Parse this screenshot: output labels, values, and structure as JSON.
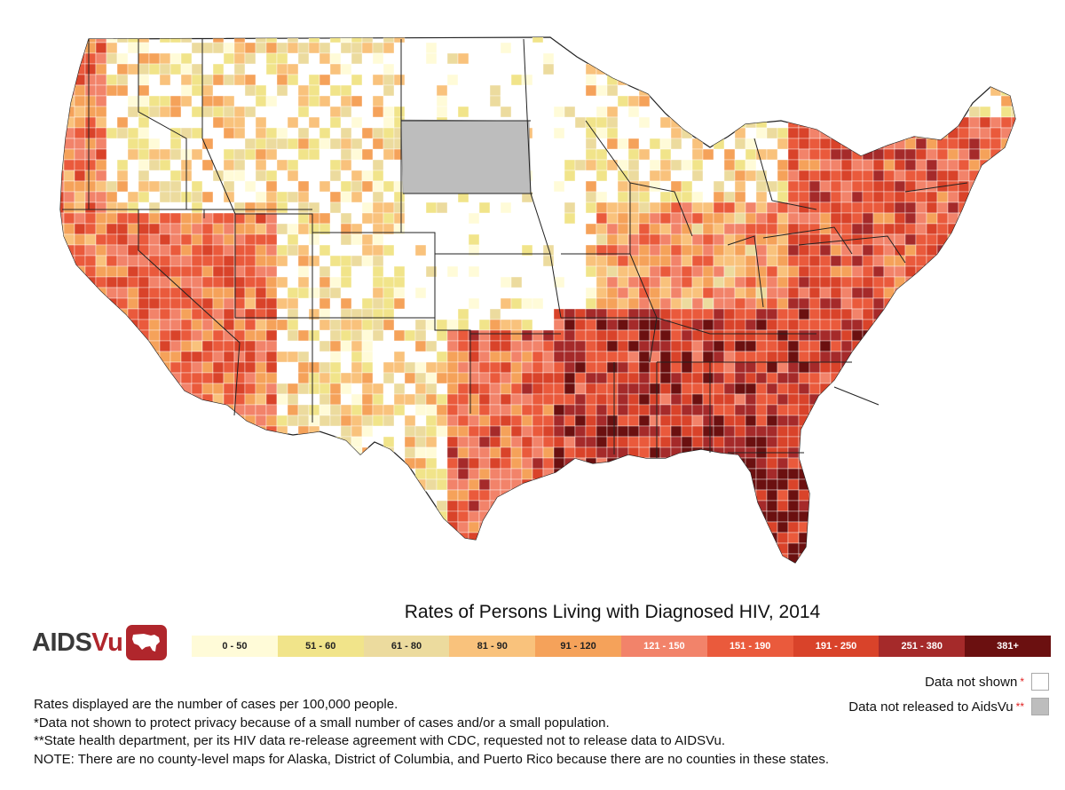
{
  "map": {
    "title": "Rates of Persons Living with Diagnosed HIV, 2014",
    "subject": "County-level rates of persons living with diagnosed HIV, contiguous United States"
  },
  "logo": {
    "text_a": "AIDS",
    "text_b": "Vu"
  },
  "legend": {
    "bins": [
      {
        "label": "0 - 50",
        "color": "#fffbd8",
        "text_color": "#222222"
      },
      {
        "label": "51 - 60",
        "color": "#f1e48a",
        "text_color": "#222222"
      },
      {
        "label": "61 - 80",
        "color": "#ecdb9e",
        "text_color": "#222222"
      },
      {
        "label": "81 - 90",
        "color": "#f9c27c",
        "text_color": "#222222"
      },
      {
        "label": "91 - 120",
        "color": "#f5a25a",
        "text_color": "#222222"
      },
      {
        "label": "121 - 150",
        "color": "#f2836a",
        "text_color": "#ffffff"
      },
      {
        "label": "151 - 190",
        "color": "#ea5a3c",
        "text_color": "#ffffff"
      },
      {
        "label": "191 - 250",
        "color": "#d9432a",
        "text_color": "#ffffff"
      },
      {
        "label": "251 - 380",
        "color": "#a52a2a",
        "text_color": "#ffffff"
      },
      {
        "label": "381+",
        "color": "#6b1010",
        "text_color": "#ffffff"
      }
    ],
    "not_shown": {
      "label": "Data not shown",
      "stars": "*",
      "color": "#ffffff"
    },
    "not_released": {
      "label": "Data not released to AidsVu",
      "stars": "**",
      "color": "#bdbdbd"
    }
  },
  "notes": [
    "Rates displayed are the number of cases per 100,000 people.",
    "*Data not shown to protect privacy because of a small number of cases and/or a small population.",
    "**State health department, per its HIV data re-release agreement with CDC, requested not to release data to AIDSVu.",
    "NOTE: There are no county-level maps for Alaska, District of Columbia, and Puerto Rico because there are no counties in these states."
  ]
}
